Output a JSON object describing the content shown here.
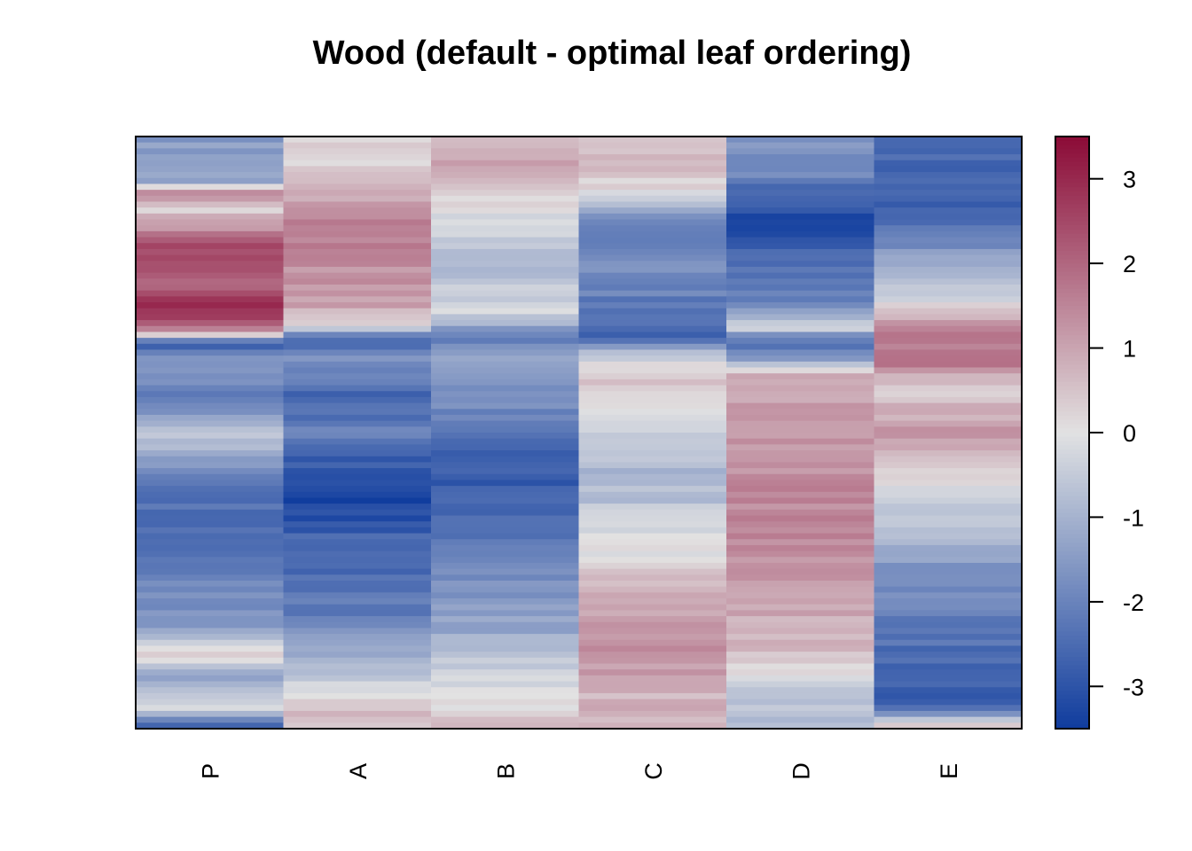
{
  "chart_data": {
    "type": "heatmap",
    "title": "Wood (default - optimal leaf ordering)",
    "columns": [
      "P",
      "A",
      "B",
      "C",
      "D",
      "E"
    ],
    "colorbar": {
      "range": [
        -3.5,
        3.5
      ],
      "ticks": [
        3,
        2,
        1,
        0,
        -1,
        -2,
        -3
      ],
      "tick_labels": [
        "3",
        "2",
        "1",
        "0",
        "-1",
        "-2",
        "-3"
      ],
      "colors": {
        "low": "#0f3c9e",
        "mid": "#e2e2e2",
        "high": "#8b0a36"
      }
    },
    "row_count": 100,
    "column_profiles": {
      "P": [
        [
          0,
          -1.5
        ],
        [
          0.08,
          -1.2
        ],
        [
          0.09,
          1.6
        ],
        [
          0.12,
          0.2
        ],
        [
          0.16,
          1.3
        ],
        [
          0.18,
          2.5
        ],
        [
          0.26,
          2.1
        ],
        [
          0.28,
          3.4
        ],
        [
          0.3,
          2.6
        ],
        [
          0.33,
          1.5
        ],
        [
          0.35,
          -3.0
        ],
        [
          0.38,
          -1.6
        ],
        [
          0.45,
          -2.2
        ],
        [
          0.5,
          -0.3
        ],
        [
          0.55,
          -1.6
        ],
        [
          0.6,
          -2.3
        ],
        [
          0.7,
          -2.4
        ],
        [
          0.75,
          -1.8
        ],
        [
          0.82,
          -1.6
        ],
        [
          0.88,
          0.6
        ],
        [
          0.9,
          -1.4
        ],
        [
          0.97,
          -0.3
        ],
        [
          1.0,
          -3.1
        ]
      ],
      "A": [
        [
          0,
          0.3
        ],
        [
          0.05,
          0.2
        ],
        [
          0.1,
          1.0
        ],
        [
          0.16,
          1.7
        ],
        [
          0.18,
          1.5
        ],
        [
          0.28,
          1.1
        ],
        [
          0.32,
          0.2
        ],
        [
          0.34,
          -2.6
        ],
        [
          0.38,
          -1.7
        ],
        [
          0.44,
          -2.6
        ],
        [
          0.5,
          -2.1
        ],
        [
          0.55,
          -2.8
        ],
        [
          0.62,
          -3.4
        ],
        [
          0.68,
          -2.6
        ],
        [
          0.8,
          -2.2
        ],
        [
          0.88,
          -1.0
        ],
        [
          0.94,
          -0.2
        ],
        [
          0.97,
          0.6
        ],
        [
          1.0,
          0.5
        ]
      ],
      "B": [
        [
          0,
          0.9
        ],
        [
          0.06,
          0.9
        ],
        [
          0.1,
          0.2
        ],
        [
          0.16,
          -0.4
        ],
        [
          0.2,
          -0.9
        ],
        [
          0.3,
          -0.2
        ],
        [
          0.34,
          -2.1
        ],
        [
          0.38,
          -1.3
        ],
        [
          0.44,
          -1.7
        ],
        [
          0.5,
          -2.4
        ],
        [
          0.58,
          -2.9
        ],
        [
          0.65,
          -2.5
        ],
        [
          0.75,
          -1.8
        ],
        [
          0.85,
          -1.1
        ],
        [
          0.93,
          -0.1
        ],
        [
          1.0,
          0.5
        ]
      ],
      "C": [
        [
          0,
          0.6
        ],
        [
          0.06,
          0.5
        ],
        [
          0.1,
          0.0
        ],
        [
          0.12,
          -1.2
        ],
        [
          0.17,
          -2.2
        ],
        [
          0.2,
          -1.6
        ],
        [
          0.25,
          -1.9
        ],
        [
          0.3,
          -2.4
        ],
        [
          0.34,
          -2.6
        ],
        [
          0.38,
          0.0
        ],
        [
          0.42,
          0.6
        ],
        [
          0.5,
          -0.4
        ],
        [
          0.58,
          -1.0
        ],
        [
          0.66,
          -0.3
        ],
        [
          0.72,
          0.2
        ],
        [
          0.8,
          1.1
        ],
        [
          0.88,
          1.3
        ],
        [
          0.95,
          0.7
        ],
        [
          1.0,
          0.8
        ]
      ],
      "D": [
        [
          0,
          -1.6
        ],
        [
          0.05,
          -1.7
        ],
        [
          0.1,
          -2.6
        ],
        [
          0.15,
          -3.3
        ],
        [
          0.2,
          -2.6
        ],
        [
          0.28,
          -2.1
        ],
        [
          0.32,
          -0.2
        ],
        [
          0.35,
          -2.7
        ],
        [
          0.38,
          -1.2
        ],
        [
          0.4,
          0.8
        ],
        [
          0.48,
          1.2
        ],
        [
          0.58,
          1.4
        ],
        [
          0.66,
          1.5
        ],
        [
          0.75,
          1.2
        ],
        [
          0.86,
          0.7
        ],
        [
          0.93,
          -0.4
        ],
        [
          1.0,
          -0.8
        ]
      ],
      "E": [
        [
          0,
          -2.3
        ],
        [
          0.05,
          -2.6
        ],
        [
          0.12,
          -2.9
        ],
        [
          0.18,
          -1.8
        ],
        [
          0.25,
          -0.8
        ],
        [
          0.3,
          0.4
        ],
        [
          0.33,
          1.7
        ],
        [
          0.39,
          1.6
        ],
        [
          0.42,
          0.3
        ],
        [
          0.5,
          1.2
        ],
        [
          0.55,
          0.5
        ],
        [
          0.62,
          -0.3
        ],
        [
          0.7,
          -1.3
        ],
        [
          0.8,
          -2.1
        ],
        [
          0.88,
          -2.5
        ],
        [
          0.96,
          -2.8
        ],
        [
          1.0,
          0.6
        ]
      ]
    }
  }
}
